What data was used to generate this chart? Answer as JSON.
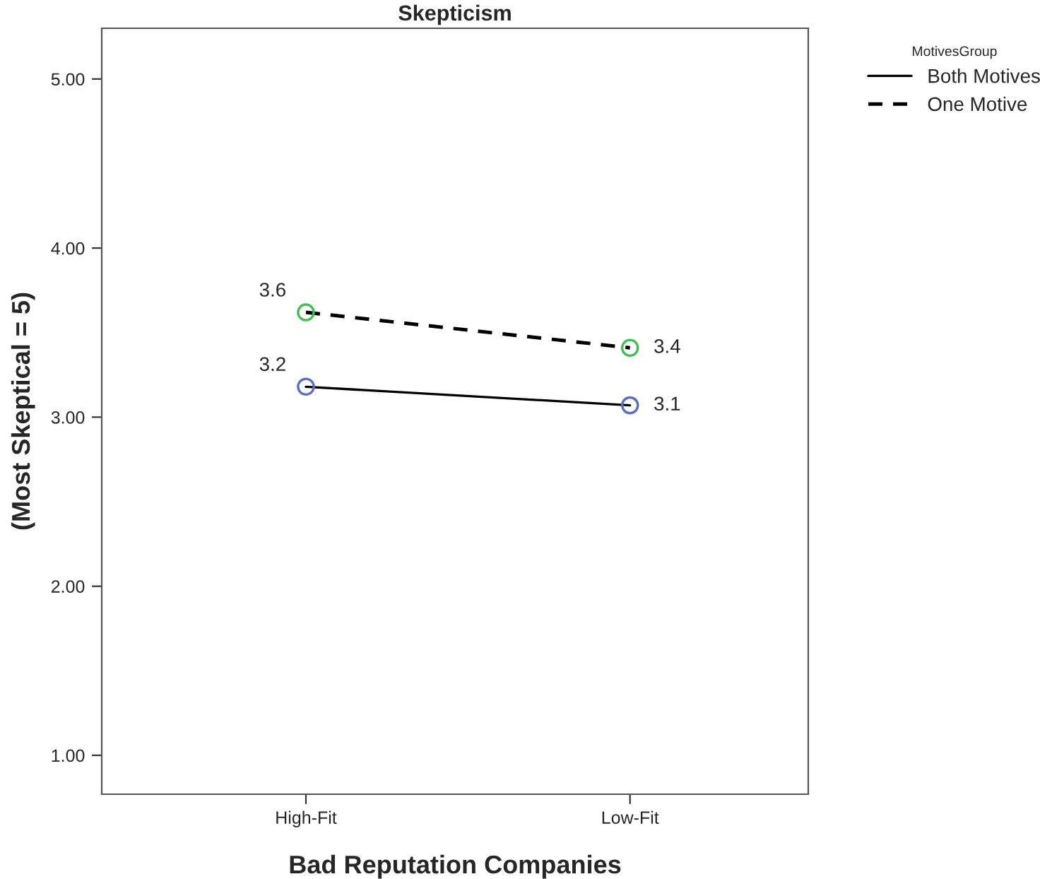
{
  "chart_data": {
    "type": "line",
    "title": "Skepticism",
    "xlabel": "Bad Reputation Companies",
    "ylabel": "(Most Skeptical = 5)",
    "legend_title": "MotivesGroup",
    "categories": [
      "High-Fit",
      "Low-Fit"
    ],
    "series": [
      {
        "name": "Both Motives",
        "color": "#000000",
        "colors": [
          "#5b6fc0",
          "#5b6fc0"
        ],
        "line_style": "solid",
        "values": [
          3.18,
          3.07
        ],
        "value_labels": [
          "3.2",
          "3.1"
        ]
      },
      {
        "name": "One Motive",
        "color": "#000000",
        "colors": [
          "#3fbf4f",
          "#3fbf4f"
        ],
        "line_style": "dashed",
        "values": [
          3.62,
          3.41
        ],
        "value_labels": [
          "3.6",
          "3.4"
        ]
      }
    ],
    "ylim": [
      0.77,
      5.3
    ],
    "yticks": [
      {
        "value": 1,
        "label": "1.00"
      },
      {
        "value": 2,
        "label": "2.00"
      },
      {
        "value": 3,
        "label": "3.00"
      },
      {
        "value": 4,
        "label": "4.00"
      },
      {
        "value": 5,
        "label": "5.00"
      }
    ],
    "marker": "circle",
    "grid": false,
    "legend": "top right"
  }
}
